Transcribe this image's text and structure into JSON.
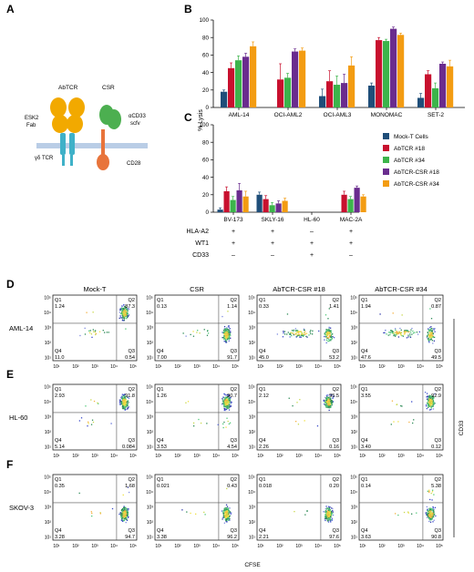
{
  "panels": {
    "A": "A",
    "B": "B",
    "C": "C",
    "D": "D",
    "E": "E",
    "F": "F"
  },
  "schematic": {
    "abtcr": "AbTCR",
    "csr": "CSR",
    "esk2": "ESK2",
    "fab": "Fab",
    "gd_tcr": "γδ TCR",
    "acd33": "αCD33",
    "scfv": "scfv",
    "cd28": "CD28",
    "colors": {
      "fab": "#f2a900",
      "tcr": "#3fb1c8",
      "scfv": "#4caf50",
      "cd28": "#e8743b",
      "membrane": "#b9cde6"
    }
  },
  "colors": {
    "Mock-T Cells": "#1f4e79",
    "AbTCR #18": "#c8102e",
    "AbTCR #34": "#3cb44b",
    "AbTCR-CSR #18": "#6a2c8e",
    "AbTCR-CSR #34": "#f39c12"
  },
  "chart_data": [
    {
      "type": "bar",
      "panel": "B",
      "ylabel": "% Lysis",
      "ylim": [
        0,
        100
      ],
      "yticks": [
        0,
        20,
        40,
        60,
        80,
        100
      ],
      "categories": [
        "AML-14",
        "OCI-AML2",
        "OCI-AML3",
        "MONOMAC",
        "SET-2"
      ],
      "series": [
        {
          "name": "Mock-T Cells",
          "values": [
            18,
            0,
            13,
            25,
            11
          ],
          "errors": [
            2,
            0,
            8,
            3,
            5
          ]
        },
        {
          "name": "AbTCR #18",
          "values": [
            45,
            32,
            30,
            77,
            38
          ],
          "errors": [
            6,
            18,
            12,
            3,
            4
          ]
        },
        {
          "name": "AbTCR #34",
          "values": [
            54,
            34,
            26,
            76,
            22
          ],
          "errors": [
            5,
            5,
            10,
            2,
            6
          ]
        },
        {
          "name": "AbTCR-CSR #18",
          "values": [
            58,
            64,
            28,
            90,
            50
          ],
          "errors": [
            4,
            3,
            10,
            2,
            2
          ]
        },
        {
          "name": "AbTCR-CSR #34",
          "values": [
            70,
            65,
            48,
            83,
            47
          ],
          "errors": [
            5,
            3,
            10,
            2,
            7
          ]
        }
      ]
    },
    {
      "type": "bar",
      "panel": "C",
      "ylabel": "% Lysis",
      "ylim": [
        0,
        100
      ],
      "yticks": [
        0,
        20,
        40,
        60,
        80,
        100
      ],
      "categories": [
        "BV-173",
        "SKLY-16",
        "HL-60",
        "MAC-2A"
      ],
      "series": [
        {
          "name": "Mock-T Cells",
          "values": [
            3,
            20,
            0,
            0
          ],
          "errors": [
            2,
            3,
            0,
            0
          ]
        },
        {
          "name": "AbTCR #18",
          "values": [
            24,
            15,
            0,
            20
          ],
          "errors": [
            5,
            4,
            0,
            4
          ]
        },
        {
          "name": "AbTCR #34",
          "values": [
            14,
            8,
            0,
            15
          ],
          "errors": [
            4,
            3,
            0,
            3
          ]
        },
        {
          "name": "AbTCR-CSR #18",
          "values": [
            25,
            10,
            0,
            28
          ],
          "errors": [
            8,
            3,
            0,
            2
          ]
        },
        {
          "name": "AbTCR-CSR #34",
          "values": [
            18,
            13,
            0,
            18
          ],
          "errors": [
            6,
            3,
            0,
            2
          ]
        }
      ],
      "markers": [
        {
          "label": "HLA-A2",
          "values": [
            "+",
            "+",
            "–",
            "+"
          ]
        },
        {
          "label": "WT1",
          "values": [
            "+",
            "+",
            "+",
            "+"
          ]
        },
        {
          "label": "CD33",
          "values": [
            "–",
            "–",
            "+",
            "–"
          ]
        }
      ]
    },
    {
      "type": "scatter",
      "panel": "D-F",
      "title": "",
      "xlabel": "CFSE",
      "ylabel": "CD33",
      "columns": [
        "Mock-T",
        "CSR",
        "AbTCR-CSR #18",
        "AbTCR-CSR #34"
      ],
      "rows": [
        {
          "panel": "D",
          "label": "AML-14",
          "plots": [
            {
              "q1": "1.24",
              "q2": "87.3",
              "q3": "0.54",
              "q4": "11.0"
            },
            {
              "q1": "0.13",
              "q2": "1.14",
              "q3": "91.7",
              "q4": "7.00"
            },
            {
              "q1": "0.33",
              "q2": "1.41",
              "q3": "53.2",
              "q4": "45.0"
            },
            {
              "q1": "1.94",
              "q2": "0.87",
              "q3": "49.5",
              "q4": "47.6"
            }
          ]
        },
        {
          "panel": "E",
          "label": "HL-60",
          "plots": [
            {
              "q1": "2.93",
              "q2": "91.8",
              "q3": "0.084",
              "q4": "5.14"
            },
            {
              "q1": "1.26",
              "q2": "90.7",
              "q3": "4.54",
              "q4": "3.53"
            },
            {
              "q1": "2.12",
              "q2": "95.5",
              "q3": "0.16",
              "q4": "2.26"
            },
            {
              "q1": "3.55",
              "q2": "92.9",
              "q3": "0.12",
              "q4": "3.40"
            }
          ]
        },
        {
          "panel": "F",
          "label": "SKOV-3",
          "plots": [
            {
              "q1": "0.35",
              "q2": "1.68",
              "q3": "94.7",
              "q4": "3.28"
            },
            {
              "q1": "0.021",
              "q2": "0.43",
              "q3": "96.2",
              "q4": "3.38"
            },
            {
              "q1": "0.018",
              "q2": "0.20",
              "q3": "97.6",
              "q4": "2.21"
            },
            {
              "q1": "0.14",
              "q2": "5.38",
              "q3": "90.8",
              "q4": "3.63"
            }
          ]
        }
      ],
      "axis_ticks": [
        "10¹",
        "10²",
        "10³",
        "10⁴",
        "10⁵"
      ],
      "quadrant_labels": [
        "Q1",
        "Q2",
        "Q3",
        "Q4"
      ]
    }
  ]
}
